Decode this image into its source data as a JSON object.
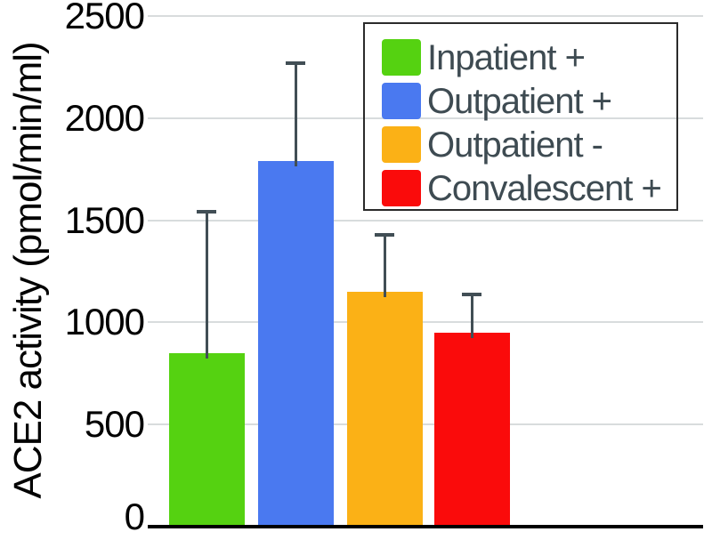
{
  "chart_data": {
    "type": "bar",
    "title": "",
    "xlabel": "",
    "ylabel": "ACE2 activity (pmol/min/ml)",
    "categories": [
      "Inpatient +",
      "Outpatient +",
      "Outpatient -",
      "Convalescent +"
    ],
    "values": [
      850,
      1790,
      1150,
      950
    ],
    "error_upper": [
      690,
      480,
      280,
      185
    ],
    "series_colors": [
      "#55d211",
      "#4a79f0",
      "#fbb116",
      "#fa0b0b"
    ],
    "ylim": [
      0,
      2500
    ],
    "yticks": [
      0,
      500,
      1000,
      1500,
      2000,
      2500
    ],
    "grid": true,
    "legend_position": "upper-right",
    "legend_entries": [
      "Inpatient +",
      "Outpatient +",
      "Outpatient -",
      "Convalescent +"
    ],
    "colors": {
      "gridline": "#d8dcdd",
      "axis": "#000000",
      "error_bar": "#414e55",
      "legend_border": "#2b2b2b",
      "legend_text": "#3e4b52",
      "tick_text": "#000000"
    }
  }
}
